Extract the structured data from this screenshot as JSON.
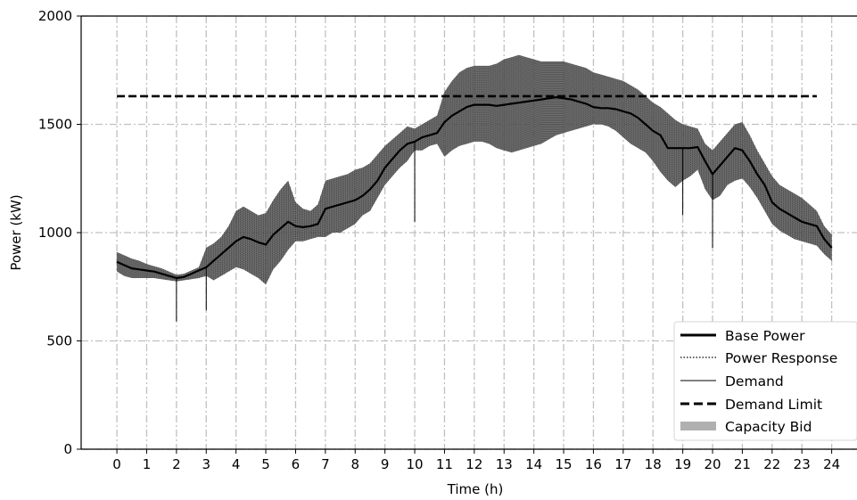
{
  "chart_data": {
    "type": "line",
    "xlabel": "Time (h)",
    "ylabel": "Power (kW)",
    "xlim": [
      -1.2,
      24.85
    ],
    "ylim": [
      0,
      2000
    ],
    "xticks": [
      0,
      1,
      2,
      3,
      4,
      5,
      6,
      7,
      8,
      9,
      10,
      11,
      12,
      13,
      14,
      15,
      16,
      17,
      18,
      19,
      20,
      21,
      22,
      23,
      24
    ],
    "yticks": [
      0,
      500,
      1000,
      1500,
      2000
    ],
    "grid": true,
    "legend_position": "lower-right",
    "legend": [
      {
        "label": "Base Power",
        "style": "thick-solid"
      },
      {
        "label": "Power Response",
        "style": "dotted"
      },
      {
        "label": "Demand",
        "style": "thin-solid"
      },
      {
        "label": "Demand Limit",
        "style": "dashed"
      },
      {
        "label": "Capacity Bid",
        "style": "gray-band"
      }
    ],
    "demand_limit": {
      "value": 1630,
      "x": [
        0,
        23.5
      ]
    },
    "base_power": {
      "x": [
        0,
        0.25,
        0.5,
        0.75,
        1,
        1.25,
        1.5,
        1.75,
        2,
        2.25,
        2.5,
        2.75,
        3,
        3.25,
        3.5,
        3.75,
        4,
        4.25,
        4.5,
        4.75,
        5,
        5.25,
        5.5,
        5.75,
        6,
        6.25,
        6.5,
        6.75,
        7,
        7.25,
        7.5,
        7.75,
        8,
        8.25,
        8.5,
        8.75,
        9,
        9.25,
        9.5,
        9.75,
        10,
        10.25,
        10.5,
        10.75,
        11,
        11.25,
        11.5,
        11.75,
        12,
        12.25,
        12.5,
        12.75,
        13,
        13.25,
        13.5,
        13.75,
        14,
        14.25,
        14.5,
        14.75,
        15,
        15.25,
        15.5,
        15.75,
        16,
        16.25,
        16.5,
        16.75,
        17,
        17.25,
        17.5,
        17.75,
        18,
        18.25,
        18.5,
        18.75,
        19,
        19.25,
        19.5,
        19.75,
        20,
        20.25,
        20.5,
        20.75,
        21,
        21.25,
        21.5,
        21.75,
        22,
        22.25,
        22.5,
        22.75,
        23,
        23.25,
        23.5,
        23.75,
        24
      ],
      "values": [
        865,
        850,
        835,
        830,
        825,
        820,
        810,
        800,
        790,
        795,
        810,
        825,
        840,
        870,
        900,
        930,
        960,
        980,
        970,
        955,
        945,
        990,
        1020,
        1050,
        1030,
        1025,
        1030,
        1040,
        1110,
        1120,
        1130,
        1140,
        1150,
        1170,
        1200,
        1240,
        1300,
        1340,
        1380,
        1410,
        1420,
        1440,
        1450,
        1460,
        1510,
        1540,
        1560,
        1580,
        1590,
        1590,
        1590,
        1585,
        1590,
        1595,
        1600,
        1605,
        1610,
        1615,
        1620,
        1625,
        1620,
        1615,
        1605,
        1595,
        1580,
        1575,
        1575,
        1570,
        1560,
        1550,
        1530,
        1500,
        1470,
        1450,
        1390,
        1390,
        1390,
        1390,
        1395,
        1330,
        1270,
        1310,
        1350,
        1390,
        1380,
        1330,
        1270,
        1220,
        1140,
        1110,
        1090,
        1070,
        1050,
        1040,
        1030,
        970,
        930
      ]
    },
    "capacity_bid": {
      "x": [
        0,
        0.25,
        0.5,
        0.75,
        1,
        1.25,
        1.5,
        1.75,
        2,
        2.25,
        2.5,
        2.75,
        3,
        3.25,
        3.5,
        3.75,
        4,
        4.25,
        4.5,
        4.75,
        5,
        5.25,
        5.5,
        5.75,
        6,
        6.25,
        6.5,
        6.75,
        7,
        7.25,
        7.5,
        7.75,
        8,
        8.25,
        8.5,
        8.75,
        9,
        9.25,
        9.5,
        9.75,
        10,
        10.25,
        10.5,
        10.75,
        11,
        11.25,
        11.5,
        11.75,
        12,
        12.25,
        12.5,
        12.75,
        13,
        13.25,
        13.5,
        13.75,
        14,
        14.25,
        14.5,
        14.75,
        15,
        15.25,
        15.5,
        15.75,
        16,
        16.25,
        16.5,
        16.75,
        17,
        17.25,
        17.5,
        17.75,
        18,
        18.25,
        18.5,
        18.75,
        19,
        19.25,
        19.5,
        19.75,
        20,
        20.25,
        20.5,
        20.75,
        21,
        21.25,
        21.5,
        21.75,
        22,
        22.25,
        22.5,
        22.75,
        23,
        23.25,
        23.5,
        23.75,
        24
      ],
      "lower": [
        820,
        800,
        790,
        790,
        790,
        790,
        785,
        780,
        775,
        780,
        785,
        790,
        800,
        780,
        800,
        820,
        840,
        830,
        810,
        790,
        760,
        830,
        870,
        920,
        960,
        960,
        970,
        980,
        980,
        1000,
        1000,
        1020,
        1040,
        1080,
        1100,
        1160,
        1220,
        1260,
        1300,
        1330,
        1380,
        1380,
        1400,
        1410,
        1350,
        1380,
        1400,
        1410,
        1420,
        1420,
        1410,
        1390,
        1380,
        1370,
        1380,
        1390,
        1400,
        1410,
        1430,
        1450,
        1460,
        1470,
        1480,
        1490,
        1500,
        1500,
        1490,
        1470,
        1440,
        1410,
        1390,
        1370,
        1330,
        1280,
        1240,
        1210,
        1240,
        1260,
        1290,
        1200,
        1150,
        1170,
        1220,
        1240,
        1250,
        1210,
        1160,
        1100,
        1040,
        1010,
        990,
        970,
        960,
        950,
        940,
        900,
        870
      ],
      "upper": [
        910,
        895,
        880,
        870,
        855,
        845,
        835,
        820,
        805,
        810,
        825,
        840,
        930,
        950,
        980,
        1030,
        1100,
        1120,
        1100,
        1080,
        1090,
        1150,
        1200,
        1240,
        1140,
        1110,
        1100,
        1130,
        1240,
        1250,
        1260,
        1270,
        1290,
        1300,
        1320,
        1360,
        1400,
        1430,
        1460,
        1490,
        1480,
        1500,
        1520,
        1540,
        1650,
        1700,
        1740,
        1760,
        1770,
        1770,
        1770,
        1780,
        1800,
        1810,
        1820,
        1810,
        1800,
        1790,
        1790,
        1790,
        1790,
        1780,
        1770,
        1760,
        1740,
        1730,
        1720,
        1710,
        1700,
        1680,
        1660,
        1630,
        1600,
        1580,
        1550,
        1520,
        1500,
        1490,
        1480,
        1410,
        1380,
        1420,
        1460,
        1500,
        1510,
        1450,
        1380,
        1320,
        1260,
        1220,
        1200,
        1180,
        1160,
        1130,
        1100,
        1030,
        990
      ]
    },
    "demand_spikes": [
      {
        "x": 2.0,
        "value": 590
      },
      {
        "x": 3.0,
        "value": 640
      },
      {
        "x": 10.0,
        "value": 1050
      },
      {
        "x": 19.0,
        "value": 1080
      },
      {
        "x": 20.0,
        "value": 930
      }
    ]
  },
  "colors": {
    "band": "#555555",
    "grid": "#c0c0c0",
    "line": "#000000",
    "legend_band": "#b0b0b0"
  }
}
